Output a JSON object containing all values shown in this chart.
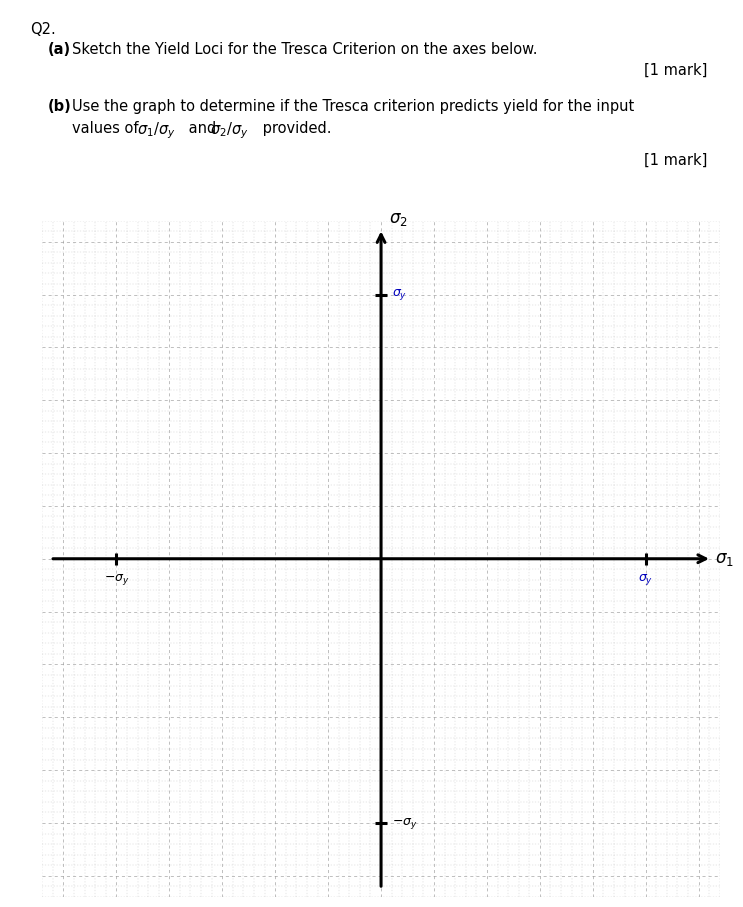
{
  "title_text": "Q2.",
  "part_a_bold": "(a)",
  "part_a_rest": " Sketch the Yield Loci for the Tresca Criterion on the axes below.",
  "part_a_mark": "[1 mark]",
  "part_b_bold": "(b)",
  "part_b_rest1": "  Use the graph to determine if the Tresca criterion predicts yield for the input",
  "part_b_rest2": "values of ",
  "part_b_mark": "[1 mark]",
  "axis_x_label": "σ_1",
  "axis_y_label": "σ_2",
  "grid_color": "#999999",
  "axis_color": "#000000",
  "background_color": "#ffffff",
  "axis_lw": 2.2,
  "grid_lw_major": 0.55,
  "grid_lw_minor": 0.3,
  "label_color_blue": "#0000bb"
}
